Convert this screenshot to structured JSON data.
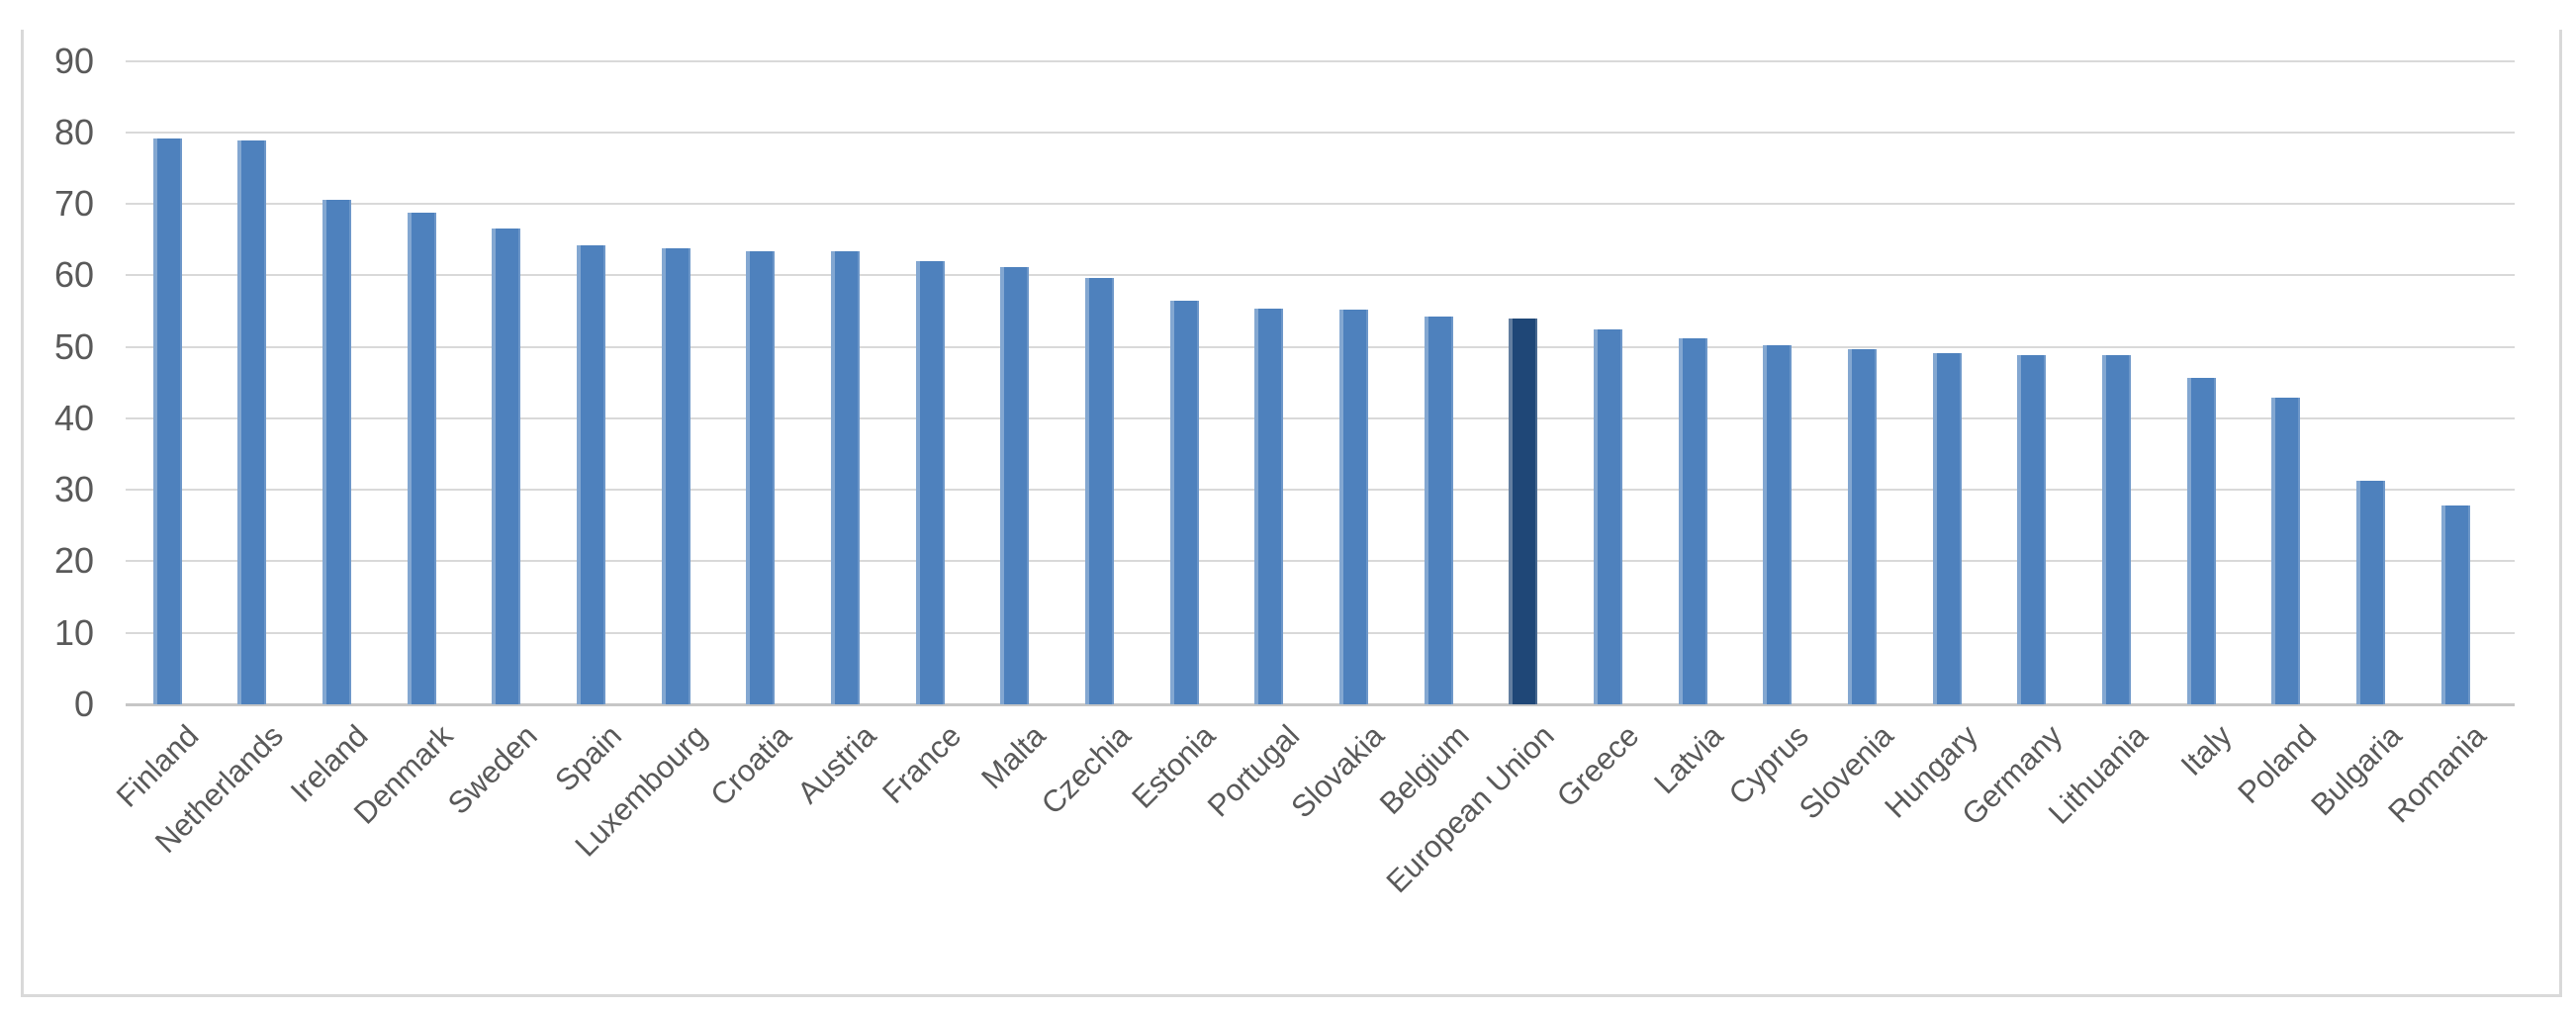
{
  "chart_data": {
    "type": "bar",
    "title": "",
    "xlabel": "",
    "ylabel": "",
    "categories": [
      "Finland",
      "Netherlands",
      "Ireland",
      "Denmark",
      "Sweden",
      "Spain",
      "Luxembourg",
      "Croatia",
      "Austria",
      "France",
      "Malta",
      "Czechia",
      "Estonia",
      "Portugal",
      "Slovakia",
      "Belgium",
      "European Union",
      "Greece",
      "Latvia",
      "Cyprus",
      "Slovenia",
      "Hungary",
      "Germany",
      "Lithuania",
      "Italy",
      "Poland",
      "Bulgaria",
      "Romania"
    ],
    "values": [
      79.2,
      78.9,
      70.5,
      68.7,
      66.5,
      64.2,
      63.8,
      63.4,
      63.3,
      62.0,
      61.2,
      59.7,
      56.4,
      55.3,
      55.2,
      54.2,
      53.9,
      52.5,
      51.2,
      50.2,
      49.7,
      49.1,
      48.9,
      48.8,
      45.6,
      42.9,
      31.2,
      27.8
    ],
    "highlight_category": "European Union",
    "ylim": [
      0,
      90
    ],
    "yticks": [
      0,
      10,
      20,
      30,
      40,
      50,
      60,
      70,
      80,
      90
    ],
    "grid": true,
    "legend": "none",
    "x_tick_rotation_deg": 45,
    "colors": {
      "bar": "#4E81BD",
      "highlight_bar": "#1F4777",
      "gridline": "#D9D9D9",
      "axis_line": "#C6C6C6",
      "tick_label": "#595959",
      "chart_border": "#D9D9D9",
      "background": "#FFFFFF"
    }
  }
}
